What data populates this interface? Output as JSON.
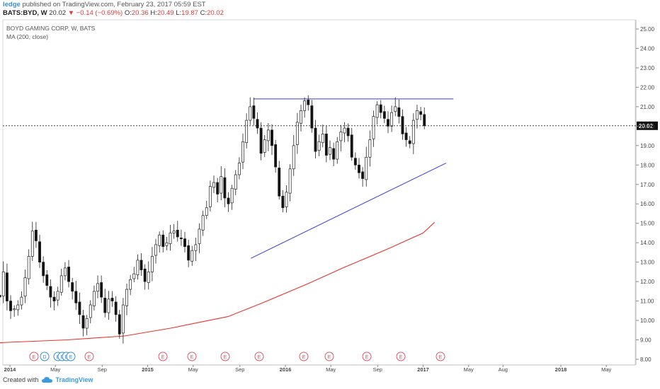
{
  "header": {
    "author": "ledge",
    "published_text": " published on TradingView.com, February 23, 2017 05:59 EST",
    "symbol": "BATS:BYD, W",
    "last": "20.02",
    "change": "▼ −0.14 (−0.69%)",
    "o_label": "O:",
    "o_val": "20.36",
    "h_label": "H:",
    "h_val": "20.49",
    "l_label": "L:",
    "l_val": "19.87",
    "c_label": "C:",
    "c_val": "20.02"
  },
  "legend": {
    "title": "BOYD GAMING CORP, W, BATS",
    "indicator": "MA (200, close)"
  },
  "footer": {
    "created_with": "Created with",
    "brand": "TradingView"
  },
  "colors": {
    "up_candle": "#ffffff",
    "down_candle": "#111111",
    "ma_line": "#e8332e",
    "trendline": "#3b3bd6",
    "price_label_bg": "#111111"
  },
  "chart_data": {
    "type": "candlestick",
    "title": "BOYD GAMING CORP, W, BATS",
    "y_ticks": [
      "25.00",
      "24.00",
      "23.00",
      "22.00",
      "21.00",
      "20.00",
      "19.00",
      "18.00",
      "17.00",
      "16.00",
      "15.00",
      "14.00",
      "13.00",
      "12.00",
      "11.00",
      "10.00",
      "9.00",
      "8.00"
    ],
    "ylim": [
      7.7,
      25.3
    ],
    "x_tick_labels": [
      "2014",
      "May",
      "Sep",
      "2015",
      "May",
      "Sep",
      "2016",
      "May",
      "Sep",
      "2017",
      "May",
      "Aug",
      "2018",
      "May"
    ],
    "last_price_label": "20.02",
    "closes": [
      11.3,
      11.2,
      12.5,
      11.0,
      10.5,
      10.6,
      10.8,
      11.2,
      12.2,
      13.3,
      14.6,
      14.1,
      13.0,
      12.3,
      11.8,
      11.2,
      11.0,
      11.5,
      12.3,
      12.7,
      12.0,
      11.5,
      10.9,
      10.3,
      9.6,
      10.1,
      10.8,
      11.5,
      11.9,
      11.2,
      10.4,
      11.1,
      11.0,
      10.3,
      9.3,
      10.8,
      11.6,
      12.1,
      12.4,
      13.1,
      12.6,
      12.0,
      12.5,
      13.3,
      13.9,
      14.4,
      13.8,
      14.0,
      14.5,
      14.6,
      14.3,
      14.2,
      13.8,
      13.1,
      13.6,
      13.9,
      14.7,
      15.4,
      15.8,
      16.9,
      17.1,
      16.5,
      17.4,
      16.3,
      16.0,
      16.8,
      17.5,
      18.1,
      19.2,
      20.3,
      21.0,
      20.4,
      19.9,
      18.6,
      19.3,
      19.8,
      19.0,
      17.9,
      16.4,
      15.8,
      16.6,
      17.8,
      19.0,
      20.2,
      20.8,
      21.3,
      21.1,
      19.9,
      18.7,
      19.2,
      19.6,
      18.5,
      18.9,
      18.3,
      19.2,
      19.7,
      19.9,
      19.5,
      18.4,
      18.0,
      17.6,
      17.3,
      18.4,
      19.3,
      20.5,
      21.1,
      20.7,
      20.4,
      20.0,
      20.7,
      21.0,
      20.5,
      19.6,
      19.3,
      19.1,
      20.3,
      20.8,
      20.6,
      20.02
    ],
    "moving_average_200": [
      {
        "x": "2013-12",
        "y": 8.85
      },
      {
        "x": "2014-06",
        "y": 9.0
      },
      {
        "x": "2014-11",
        "y": 9.2
      },
      {
        "x": "2015-03",
        "y": 9.6
      },
      {
        "x": "2015-08",
        "y": 10.2
      },
      {
        "x": "2015-11",
        "y": 10.9
      },
      {
        "x": "2016-03",
        "y": 11.9
      },
      {
        "x": "2016-06",
        "y": 12.7
      },
      {
        "x": "2016-10",
        "y": 13.7
      },
      {
        "x": "2017-01",
        "y": 14.5
      },
      {
        "x": "2017-02",
        "y": 15.05
      }
    ],
    "resistance_level": 21.4,
    "support_trendline": [
      {
        "x": "2015-10",
        "y": 13.2
      },
      {
        "x": "2017-03",
        "y": 18.1
      }
    ],
    "earnings_markers": [
      "E",
      "D",
      "E",
      "E",
      "E",
      "E",
      "E",
      "E",
      "E",
      "E",
      "E",
      "E",
      "E",
      "E",
      "E"
    ]
  }
}
